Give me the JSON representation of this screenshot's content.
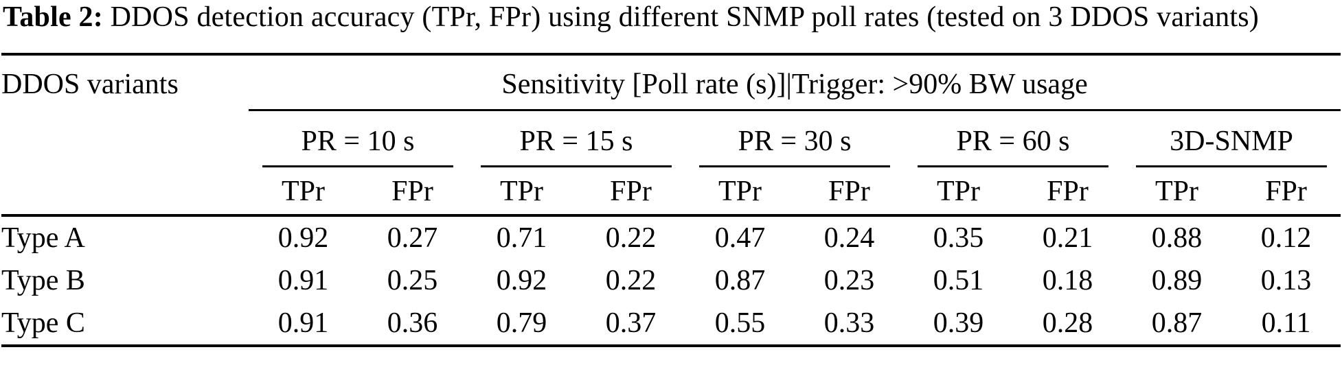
{
  "caption": {
    "label": "Table 2:",
    "text": " DDOS detection accuracy (TPr, FPr) using different SNMP poll rates (tested on 3 DDOS variants)"
  },
  "table": {
    "row_header": "DDOS variants",
    "span_header": "Sensitivity [Poll rate (s)]|Trigger: >90% BW usage",
    "groups": [
      {
        "label": "PR = 10 s"
      },
      {
        "label": "PR = 15 s"
      },
      {
        "label": "PR = 30 s"
      },
      {
        "label": "PR = 60 s"
      },
      {
        "label": "3D-SNMP"
      }
    ],
    "sub_headers": [
      "TPr",
      "FPr",
      "TPr",
      "FPr",
      "TPr",
      "FPr",
      "TPr",
      "FPr",
      "TPr",
      "FPr"
    ],
    "rows": [
      {
        "variant": "Type A",
        "values": [
          "0.92",
          "0.27",
          "0.71",
          "0.22",
          "0.47",
          "0.24",
          "0.35",
          "0.21",
          "0.88",
          "0.12"
        ]
      },
      {
        "variant": "Type B",
        "values": [
          "0.91",
          "0.25",
          "0.92",
          "0.22",
          "0.87",
          "0.23",
          "0.51",
          "0.18",
          "0.89",
          "0.13"
        ]
      },
      {
        "variant": "Type C",
        "values": [
          "0.91",
          "0.36",
          "0.79",
          "0.37",
          "0.55",
          "0.33",
          "0.39",
          "0.28",
          "0.87",
          "0.11"
        ]
      }
    ]
  }
}
